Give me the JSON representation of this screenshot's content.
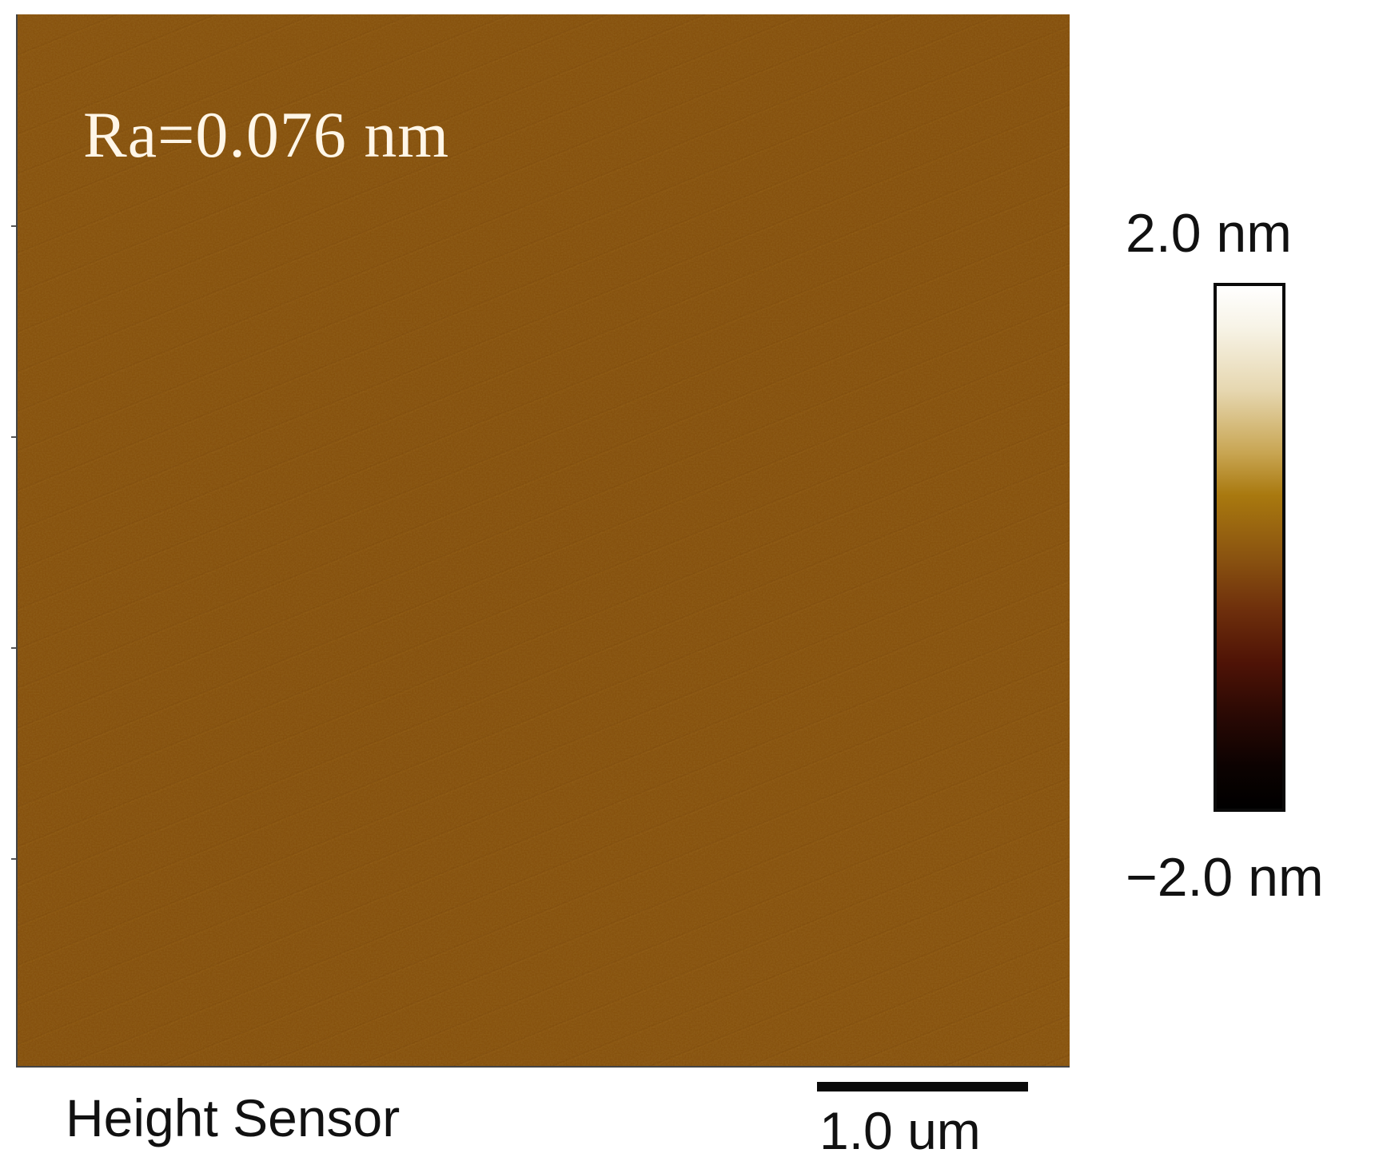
{
  "figure": {
    "roughness_label": "Ra=0.076 nm",
    "channel_label": "Height Sensor",
    "scale_bar_label": "1.0 um",
    "colorbar": {
      "max_label": "2.0 nm",
      "min_label": "−2.0 nm"
    }
  },
  "colors": {
    "surface_base": "#87520f",
    "surface_dark": "#6f3f0a",
    "surface_light": "#9a6416"
  }
}
